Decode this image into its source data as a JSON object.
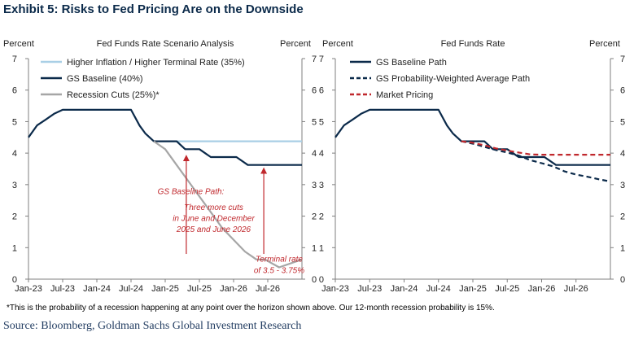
{
  "exhibit_title": "Exhibit 5: Risks to Fed Pricing Are on the Downside",
  "footnote": "*This is the probability of a recession happening at any point over the horizon shown above.  Our 12-month recession probability is 15%.",
  "source": "Source: Bloomberg, Goldman Sachs Global Investment Research",
  "colors": {
    "navy": "#0b2a4a",
    "light_blue": "#a9cfe6",
    "gray": "#a6a6a6",
    "red": "#c0282d",
    "annotation_red": "#c0282d",
    "axis": "#7f7f7f"
  },
  "chart_data": [
    {
      "type": "line",
      "title": "Fed Funds Rate Scenario Analysis",
      "ylabel_left": "Percent",
      "ylabel_right": "Percent",
      "ylim": [
        0,
        7
      ],
      "yticks": [
        "0",
        "1",
        "2",
        "3",
        "4",
        "5",
        "6",
        "7"
      ],
      "xlim": [
        0,
        48
      ],
      "xticks": [
        {
          "label": "Jan-23",
          "x": 0
        },
        {
          "label": "Jul-23",
          "x": 6
        },
        {
          "label": "Jan-24",
          "x": 12
        },
        {
          "label": "Jul-24",
          "x": 18
        },
        {
          "label": "Jan-25",
          "x": 24
        },
        {
          "label": "Jul-25",
          "x": 30
        },
        {
          "label": "Jan-26",
          "x": 36
        },
        {
          "label": "Jul-26",
          "x": 42
        }
      ],
      "legend_position": "top-left",
      "series": [
        {
          "name": "Higher Inflation / Higher Terminal Rate (35%)",
          "color": "#a9cfe6",
          "dash": "solid",
          "points": [
            [
              23,
              4.375
            ],
            [
              48,
              4.375
            ]
          ]
        },
        {
          "name": "GS Baseline (40%)",
          "color": "#0b2a4a",
          "dash": "solid",
          "points": [
            [
              0,
              4.5
            ],
            [
              1.5,
              4.88
            ],
            [
              3,
              5.06
            ],
            [
              4.5,
              5.25
            ],
            [
              6,
              5.375
            ],
            [
              18,
              5.375
            ],
            [
              19.5,
              4.875
            ],
            [
              20.5,
              4.625
            ],
            [
              22,
              4.375
            ],
            [
              26,
              4.375
            ],
            [
              27.5,
              4.125
            ],
            [
              30,
              4.125
            ],
            [
              32,
              3.875
            ],
            [
              35,
              3.875
            ],
            [
              36.5,
              3.875
            ],
            [
              38.5,
              3.625
            ],
            [
              48,
              3.625
            ]
          ]
        },
        {
          "name": "Recession Cuts (25%)*",
          "color": "#a6a6a6",
          "dash": "solid",
          "points": [
            [
              22,
              4.375
            ],
            [
              24,
              4.125
            ],
            [
              26,
              3.625
            ],
            [
              28,
              3.125
            ],
            [
              30,
              2.625
            ],
            [
              32,
              2.125
            ],
            [
              34,
              1.625
            ],
            [
              36,
              1.25
            ],
            [
              38,
              0.875
            ],
            [
              40,
              0.625
            ],
            [
              41.5,
              0.625
            ],
            [
              44,
              0.375
            ],
            [
              48,
              0.625
            ]
          ]
        }
      ],
      "annotations": [
        {
          "text": "GS Baseline Path:",
          "x": 28.5,
          "y": 2.7
        },
        {
          "text": "Three more cuts",
          "x": 32.5,
          "y": 2.2
        },
        {
          "text": "in June and December",
          "x": 32.5,
          "y": 1.85
        },
        {
          "text": "2025 and June 2026",
          "x": 32.5,
          "y": 1.5
        },
        {
          "text": "Terminal rate",
          "x": 44,
          "y": 0.55
        },
        {
          "text": "of 3.5 - 3.75%",
          "x": 44,
          "y": 0.2
        }
      ],
      "arrows": [
        {
          "x": 27.7,
          "from_y": 0.8,
          "to_y": 3.95
        },
        {
          "x": 41.3,
          "from_y": 0.8,
          "to_y": 3.55
        }
      ]
    },
    {
      "type": "line",
      "title": "Fed Funds Rate",
      "ylabel_left": "Percent",
      "ylabel_right": "Percent",
      "ylim": [
        0,
        7
      ],
      "yticks": [
        "0",
        "1",
        "2",
        "3",
        "4",
        "5",
        "6",
        "7"
      ],
      "xlim": [
        0,
        48
      ],
      "xticks": [
        {
          "label": "Jan-23",
          "x": 0
        },
        {
          "label": "Jul-23",
          "x": 6
        },
        {
          "label": "Jan-24",
          "x": 12
        },
        {
          "label": "Jul-24",
          "x": 18
        },
        {
          "label": "Jan-25",
          "x": 24
        },
        {
          "label": "Jul-25",
          "x": 30
        },
        {
          "label": "Jan-26",
          "x": 36
        },
        {
          "label": "Jul-26",
          "x": 42
        }
      ],
      "legend_position": "top-left",
      "series": [
        {
          "name": "GS Baseline Path",
          "color": "#0b2a4a",
          "dash": "solid",
          "points": [
            [
              0,
              4.5
            ],
            [
              1.5,
              4.88
            ],
            [
              3,
              5.06
            ],
            [
              4.5,
              5.25
            ],
            [
              6,
              5.375
            ],
            [
              18,
              5.375
            ],
            [
              19.5,
              4.875
            ],
            [
              20.5,
              4.625
            ],
            [
              22,
              4.375
            ],
            [
              26,
              4.375
            ],
            [
              27.5,
              4.125
            ],
            [
              30,
              4.125
            ],
            [
              32,
              3.875
            ],
            [
              35,
              3.875
            ],
            [
              36.5,
              3.875
            ],
            [
              38.5,
              3.625
            ],
            [
              48,
              3.625
            ]
          ]
        },
        {
          "name": "GS Probability-Weighted Average Path",
          "color": "#0b2a4a",
          "dash": "dashed",
          "points": [
            [
              22,
              4.375
            ],
            [
              24,
              4.3
            ],
            [
              26,
              4.2
            ],
            [
              28,
              4.1
            ],
            [
              30,
              4.02
            ],
            [
              32,
              3.92
            ],
            [
              34,
              3.78
            ],
            [
              36,
              3.68
            ],
            [
              38,
              3.58
            ],
            [
              40,
              3.42
            ],
            [
              42,
              3.32
            ],
            [
              44,
              3.25
            ],
            [
              46,
              3.17
            ],
            [
              48,
              3.1
            ]
          ]
        },
        {
          "name": "Market Pricing",
          "color": "#c0282d",
          "dash": "dashed",
          "points": [
            [
              22,
              4.375
            ],
            [
              24,
              4.33
            ],
            [
              26,
              4.25
            ],
            [
              28,
              4.15
            ],
            [
              30,
              4.08
            ],
            [
              32,
              4.02
            ],
            [
              34,
              3.96
            ],
            [
              36,
              3.95
            ],
            [
              40,
              3.95
            ],
            [
              44,
              3.95
            ],
            [
              48,
              3.95
            ]
          ]
        }
      ],
      "annotations": [],
      "arrows": []
    }
  ]
}
